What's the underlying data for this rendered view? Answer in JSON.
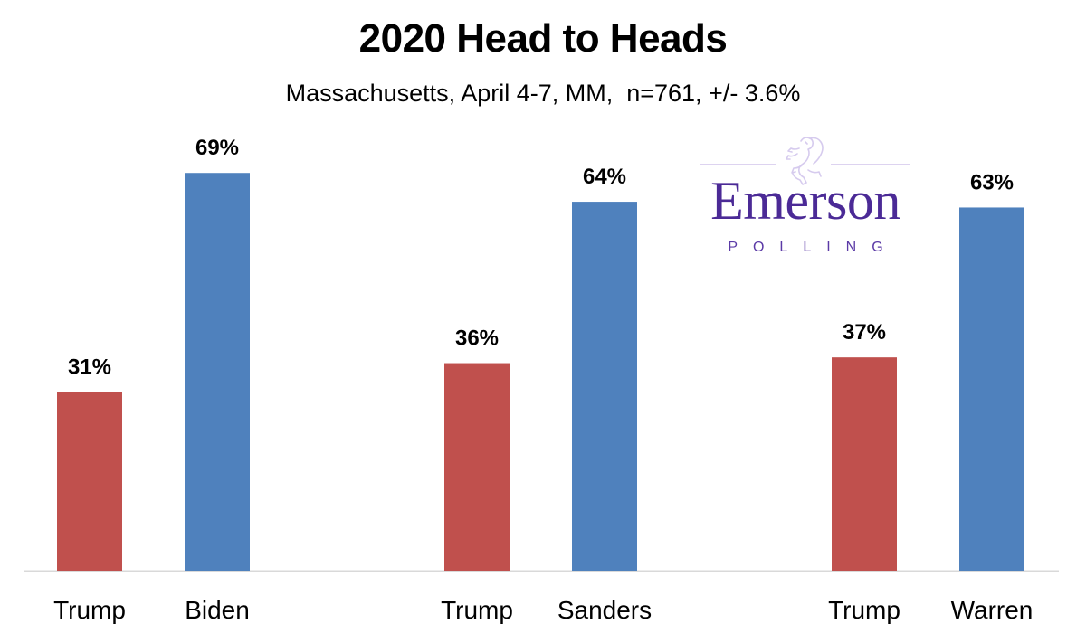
{
  "chart_data": {
    "type": "bar",
    "title": "2020 Head to Heads",
    "subtitle": "Massachusetts, April 4-7, MM,  n=761, +/- 3.6%",
    "xlabel": "",
    "ylabel": "",
    "ylim": [
      0,
      99
    ],
    "grid": false,
    "legend": "none",
    "value_format": "percent",
    "groups": [
      {
        "name": "Trump vs Biden",
        "bars": [
          {
            "category": "Trump",
            "value": 31,
            "label": "31%",
            "party": "republican"
          },
          {
            "category": "Biden",
            "value": 69,
            "label": "69%",
            "party": "democrat"
          }
        ]
      },
      {
        "name": "Trump vs Sanders",
        "bars": [
          {
            "category": "Trump",
            "value": 36,
            "label": "36%",
            "party": "republican"
          },
          {
            "category": "Sanders",
            "value": 64,
            "label": "64%",
            "party": "democrat"
          }
        ]
      },
      {
        "name": "Trump vs Warren",
        "bars": [
          {
            "category": "Trump",
            "value": 37,
            "label": "37%",
            "party": "republican"
          },
          {
            "category": "Warren",
            "value": 63,
            "label": "63%",
            "party": "democrat"
          }
        ]
      }
    ],
    "colors": {
      "republican": "#c0504d",
      "democrat": "#4f81bd",
      "axis": "#d9d9d9"
    }
  },
  "logo": {
    "wordmark": "Emerson",
    "subtext": "POLLING",
    "icon": "lion-rampant-icon",
    "color": "#4b2a96"
  }
}
